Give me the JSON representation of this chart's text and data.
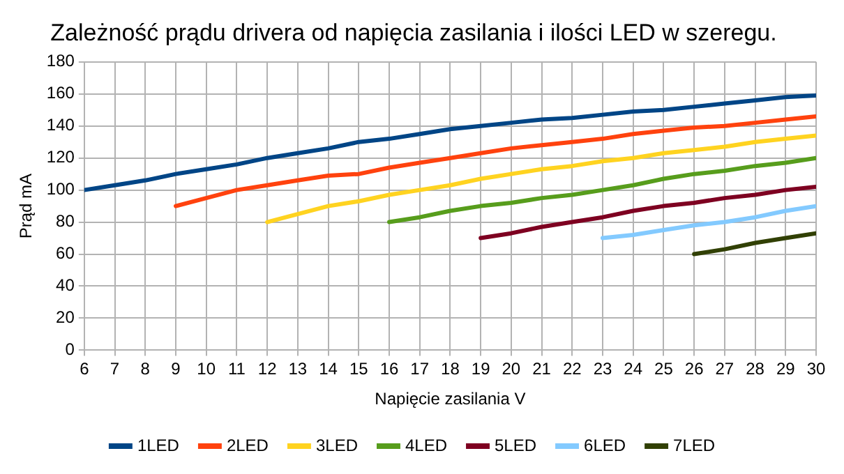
{
  "chart_data": {
    "type": "line",
    "title": "Zależność prądu drivera od napięcia zasilania i ilości LED w szeregu.",
    "xlabel": "Napięcie zasilania V",
    "ylabel": "Prąd mA",
    "x": [
      6,
      7,
      8,
      9,
      10,
      11,
      12,
      13,
      14,
      15,
      16,
      17,
      18,
      19,
      20,
      21,
      22,
      23,
      24,
      25,
      26,
      27,
      28,
      29,
      30
    ],
    "series": [
      {
        "name": "1LED",
        "color": "#004586",
        "values": [
          100,
          103,
          106,
          110,
          113,
          116,
          120,
          123,
          126,
          130,
          132,
          135,
          138,
          140,
          142,
          144,
          145,
          147,
          149,
          150,
          152,
          154,
          156,
          158,
          159
        ]
      },
      {
        "name": "2LED",
        "color": "#ff420e",
        "values": [
          null,
          null,
          null,
          90,
          95,
          100,
          103,
          106,
          109,
          110,
          114,
          117,
          120,
          123,
          126,
          128,
          130,
          132,
          135,
          137,
          139,
          140,
          142,
          144,
          146
        ]
      },
      {
        "name": "3LED",
        "color": "#ffd320",
        "values": [
          null,
          null,
          null,
          null,
          null,
          null,
          80,
          85,
          90,
          93,
          97,
          100,
          103,
          107,
          110,
          113,
          115,
          118,
          120,
          123,
          125,
          127,
          130,
          132,
          134
        ]
      },
      {
        "name": "4LED",
        "color": "#579d1c",
        "values": [
          null,
          null,
          null,
          null,
          null,
          null,
          null,
          null,
          null,
          null,
          80,
          83,
          87,
          90,
          92,
          95,
          97,
          100,
          103,
          107,
          110,
          112,
          115,
          117,
          120
        ]
      },
      {
        "name": "5LED",
        "color": "#7e0021",
        "values": [
          null,
          null,
          null,
          null,
          null,
          null,
          null,
          null,
          null,
          null,
          null,
          null,
          null,
          70,
          73,
          77,
          80,
          83,
          87,
          90,
          92,
          95,
          97,
          100,
          102
        ]
      },
      {
        "name": "6LED",
        "color": "#83caff",
        "values": [
          null,
          null,
          null,
          null,
          null,
          null,
          null,
          null,
          null,
          null,
          null,
          null,
          null,
          null,
          null,
          null,
          null,
          70,
          72,
          75,
          78,
          80,
          83,
          87,
          90
        ]
      },
      {
        "name": "7LED",
        "color": "#314004",
        "values": [
          null,
          null,
          null,
          null,
          null,
          null,
          null,
          null,
          null,
          null,
          null,
          null,
          null,
          null,
          null,
          null,
          null,
          null,
          null,
          null,
          60,
          63,
          67,
          70,
          73
        ]
      }
    ],
    "xlim": [
      6,
      30
    ],
    "xticks": [
      6,
      7,
      8,
      9,
      10,
      11,
      12,
      13,
      14,
      15,
      16,
      17,
      18,
      19,
      20,
      21,
      22,
      23,
      24,
      25,
      26,
      27,
      28,
      29,
      30
    ],
    "ylim": [
      0,
      180
    ],
    "yticks": [
      0,
      20,
      40,
      60,
      80,
      100,
      120,
      140,
      160,
      180
    ],
    "grid": true,
    "legend": "bottom",
    "marker": "none",
    "line_style": "solid"
  }
}
